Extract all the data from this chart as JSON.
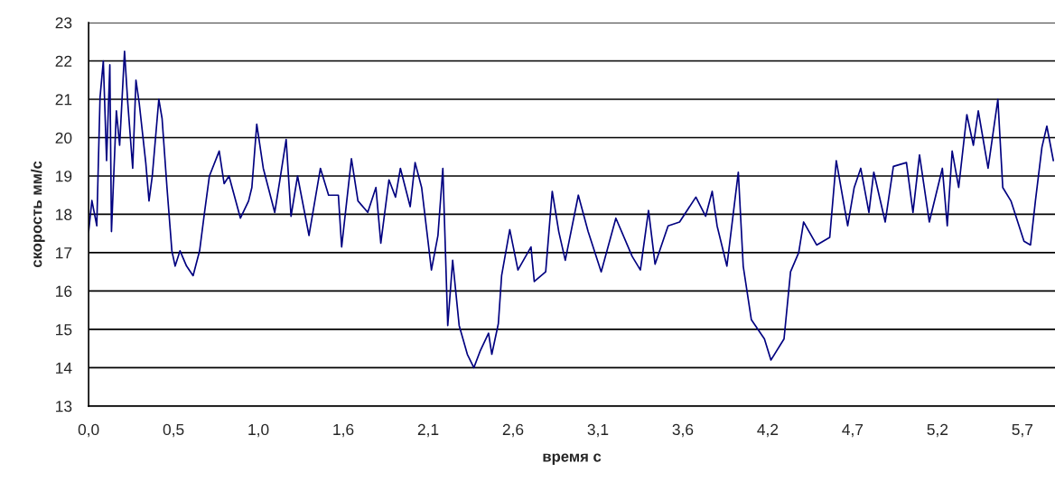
{
  "chart_data": {
    "type": "line",
    "xlabel": "время с",
    "ylabel": "скорость мм/с",
    "xlim": [
      0,
      5.92
    ],
    "ylim": [
      13,
      23
    ],
    "xticks": [
      {
        "value": 0,
        "label": "0,0"
      },
      {
        "value": 0.52,
        "label": "0,5"
      },
      {
        "value": 1.04,
        "label": "1,0"
      },
      {
        "value": 1.56,
        "label": "1,6"
      },
      {
        "value": 2.08,
        "label": "2,1"
      },
      {
        "value": 2.6,
        "label": "2,6"
      },
      {
        "value": 3.12,
        "label": "3,1"
      },
      {
        "value": 3.64,
        "label": "3,6"
      },
      {
        "value": 4.16,
        "label": "4,2"
      },
      {
        "value": 4.68,
        "label": "4,7"
      },
      {
        "value": 5.2,
        "label": "5,2"
      },
      {
        "value": 5.72,
        "label": "5,7"
      }
    ],
    "yticks": [
      13,
      14,
      15,
      16,
      17,
      18,
      19,
      20,
      21,
      22,
      23
    ],
    "grid": "y",
    "legend": false,
    "series": [
      {
        "color": "#000080",
        "x": [
          0.0,
          0.02,
          0.05,
          0.06,
          0.07,
          0.09,
          0.11,
          0.13,
          0.14,
          0.17,
          0.19,
          0.22,
          0.24,
          0.27,
          0.29,
          0.31,
          0.35,
          0.37,
          0.39,
          0.43,
          0.45,
          0.48,
          0.51,
          0.53,
          0.56,
          0.6,
          0.64,
          0.68,
          0.71,
          0.74,
          0.8,
          0.83,
          0.86,
          0.93,
          0.98,
          1.0,
          1.03,
          1.07,
          1.14,
          1.17,
          1.21,
          1.24,
          1.28,
          1.35,
          1.42,
          1.47,
          1.53,
          1.55,
          1.61,
          1.65,
          1.71,
          1.76,
          1.79,
          1.84,
          1.88,
          1.91,
          1.97,
          2.0,
          2.04,
          2.1,
          2.14,
          2.17,
          2.2,
          2.23,
          2.27,
          2.32,
          2.36,
          2.4,
          2.45,
          2.47,
          2.51,
          2.53,
          2.58,
          2.63,
          2.71,
          2.73,
          2.8,
          2.84,
          2.88,
          2.92,
          3.0,
          3.06,
          3.14,
          3.23,
          3.33,
          3.38,
          3.43,
          3.47,
          3.55,
          3.62,
          3.72,
          3.78,
          3.82,
          3.85,
          3.91,
          3.98,
          4.01,
          4.06,
          4.14,
          4.18,
          4.26,
          4.3,
          4.35,
          4.38,
          4.46,
          4.54,
          4.58,
          4.65,
          4.69,
          4.73,
          4.78,
          4.81,
          4.88,
          4.93,
          5.01,
          5.05,
          5.09,
          5.15,
          5.23,
          5.26,
          5.29,
          5.33,
          5.38,
          5.42,
          5.45,
          5.51,
          5.57,
          5.6,
          5.65,
          5.73,
          5.77,
          5.8,
          5.84,
          5.87,
          5.91
        ],
        "values": [
          17.54,
          18.36,
          17.7,
          19.4,
          21.05,
          22.0,
          19.4,
          21.9,
          17.55,
          20.7,
          19.8,
          22.25,
          20.9,
          19.2,
          21.5,
          20.9,
          19.35,
          18.35,
          19.0,
          21.0,
          20.5,
          18.7,
          17.05,
          16.65,
          17.05,
          16.65,
          16.4,
          17.05,
          18.05,
          19.0,
          19.65,
          18.8,
          19.0,
          17.9,
          18.35,
          18.7,
          20.35,
          19.2,
          18.05,
          18.85,
          19.95,
          17.95,
          19.0,
          17.45,
          19.2,
          18.5,
          18.5,
          17.15,
          19.45,
          18.35,
          18.05,
          18.7,
          17.25,
          18.9,
          18.45,
          19.2,
          18.2,
          19.35,
          18.7,
          16.55,
          17.45,
          19.2,
          15.1,
          16.8,
          15.1,
          14.35,
          14.0,
          14.45,
          14.9,
          14.35,
          15.15,
          16.4,
          17.6,
          16.55,
          17.15,
          16.25,
          16.5,
          18.6,
          17.55,
          16.8,
          18.5,
          17.55,
          16.5,
          17.9,
          16.9,
          16.55,
          18.1,
          16.7,
          17.7,
          17.8,
          18.45,
          17.95,
          18.6,
          17.7,
          16.65,
          19.1,
          16.65,
          15.25,
          14.75,
          14.2,
          14.75,
          16.5,
          17.0,
          17.8,
          17.2,
          17.4,
          19.4,
          17.7,
          18.7,
          19.2,
          18.05,
          19.1,
          17.8,
          19.25,
          19.35,
          18.05,
          19.55,
          17.8,
          19.2,
          17.7,
          19.65,
          18.7,
          20.6,
          19.8,
          20.7,
          19.2,
          21.0,
          18.7,
          18.35,
          17.3,
          17.2,
          18.35,
          19.75,
          20.3,
          19.4
        ]
      }
    ]
  }
}
